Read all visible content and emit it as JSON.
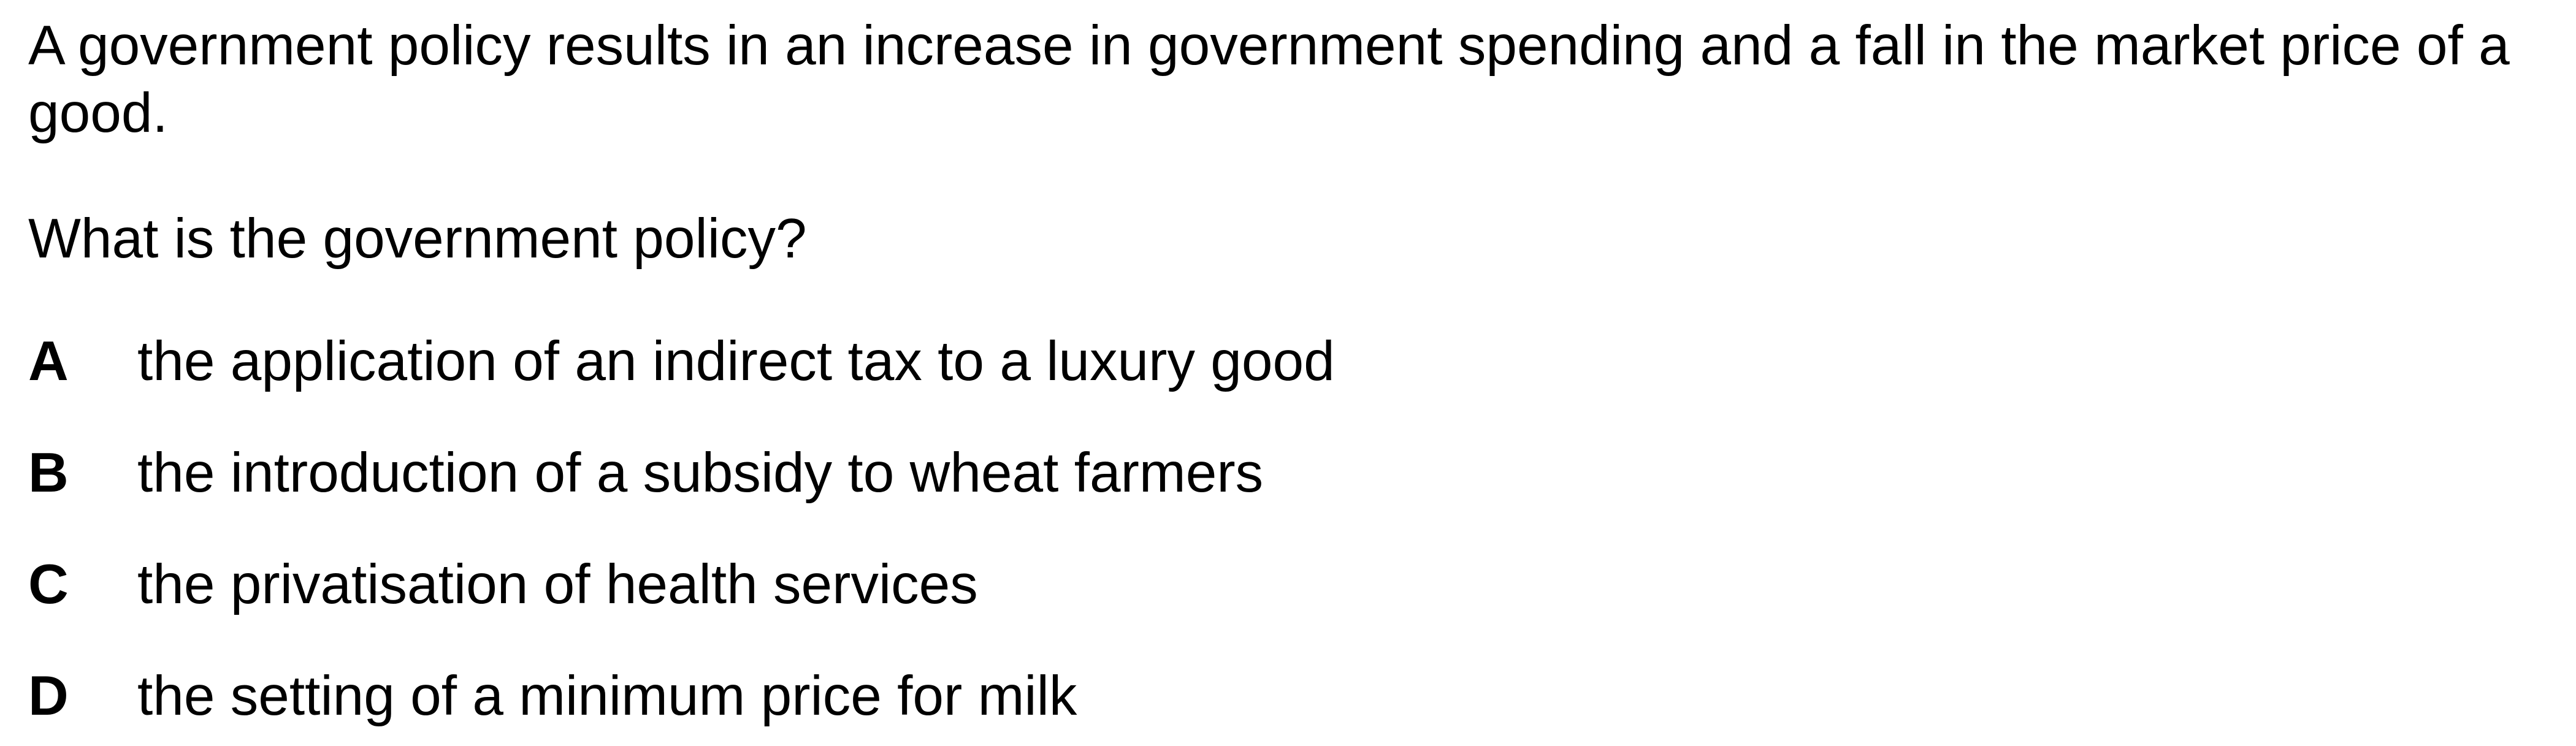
{
  "question": {
    "stem": "A government policy results in an increase in government spending and a fall in the market price of a good.",
    "prompt": "What is the government policy?",
    "options": [
      {
        "letter": "A",
        "text": "the application of an indirect tax to a luxury good"
      },
      {
        "letter": "B",
        "text": "the introduction of a subsidy to wheat farmers"
      },
      {
        "letter": "C",
        "text": "the privatisation of health services"
      },
      {
        "letter": "D",
        "text": "the setting of a minimum price for milk"
      }
    ]
  }
}
